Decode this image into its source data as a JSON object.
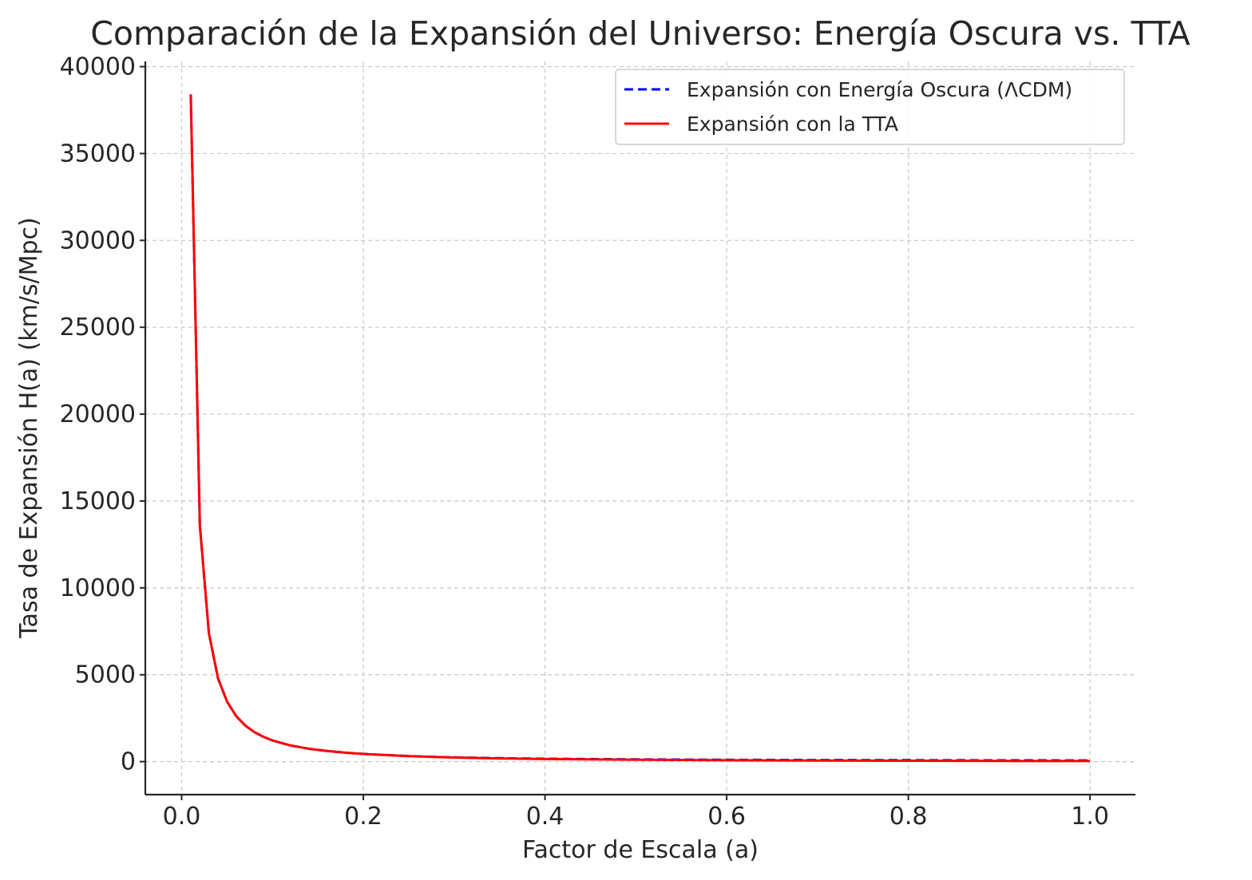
{
  "chart_data": {
    "type": "line",
    "title": "Comparación de la Expansión del Universo: Energía Oscura vs. TTA",
    "xlabel": "Factor de Escala (a)",
    "ylabel": "Tasa de Expansión H(a) (km/s/Mpc)",
    "xlim": [
      -0.04,
      1.05
    ],
    "ylim": [
      -1900,
      40300
    ],
    "xticks": [
      "0.0",
      "0.2",
      "0.4",
      "0.6",
      "0.8",
      "1.0"
    ],
    "yticks": [
      "0",
      "5000",
      "10000",
      "15000",
      "20000",
      "25000",
      "30000",
      "35000",
      "40000"
    ],
    "grid": true,
    "legend_position": "top-right",
    "x": [
      0.01,
      0.02,
      0.03,
      0.04,
      0.05,
      0.06,
      0.07,
      0.08,
      0.09,
      0.1,
      0.12,
      0.14,
      0.16,
      0.18,
      0.2,
      0.25,
      0.3,
      0.35,
      0.4,
      0.5,
      0.6,
      0.7,
      0.8,
      0.9,
      1.0
    ],
    "series": [
      {
        "name": "Expansión con Energía Oscura (ΛCDM)",
        "style": "dashed",
        "color": "#0000ff",
        "values": [
          38400,
          13600,
          7400,
          4800,
          3450,
          2620,
          2080,
          1700,
          1430,
          1220,
          930,
          740,
          610,
          515,
          440,
          320,
          245,
          200,
          168,
          130,
          108,
          94,
          84,
          76,
          70
        ]
      },
      {
        "name": "Expansión con la TTA",
        "style": "solid",
        "color": "#ff0000",
        "values": [
          38400,
          13600,
          7400,
          4800,
          3450,
          2620,
          2080,
          1700,
          1430,
          1220,
          930,
          740,
          610,
          515,
          440,
          315,
          235,
          185,
          150,
          105,
          80,
          62,
          50,
          40,
          32
        ]
      }
    ]
  }
}
